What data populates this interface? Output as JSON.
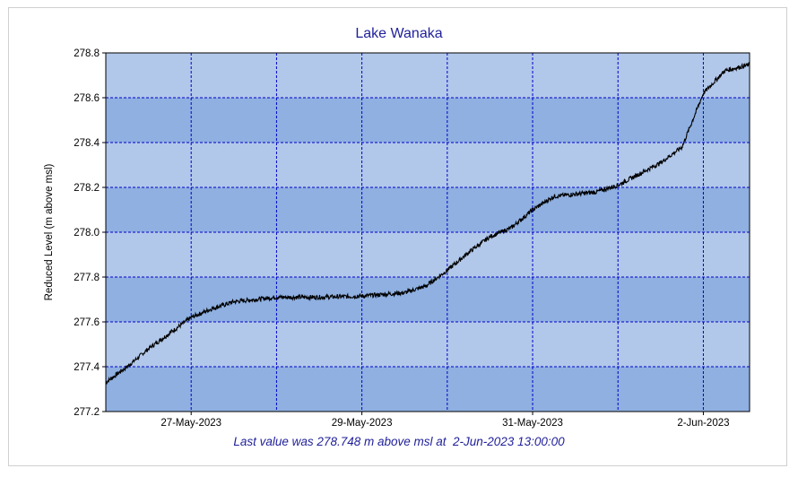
{
  "chart_data": {
    "type": "line",
    "title": "Lake Wanaka",
    "ylabel": "Reduced Level (m above msl)",
    "xlabel": "",
    "x_start": "2023-05-26T00:00",
    "x_end": "2023-06-02T13:00",
    "x_ticks": [
      {
        "label": "27-May-2023",
        "date": "2023-05-27T00:00"
      },
      {
        "label": "29-May-2023",
        "date": "2023-05-29T00:00"
      },
      {
        "label": "31-May-2023",
        "date": "2023-05-31T00:00"
      },
      {
        "label": "2-Jun-2023",
        "date": "2023-06-02T00:00"
      }
    ],
    "ylim": [
      277.2,
      278.8
    ],
    "y_ticks": [
      "277.2",
      "277.4",
      "277.6",
      "277.8",
      "278.0",
      "278.2",
      "278.4",
      "278.6",
      "278.8"
    ],
    "grid": true,
    "series": [
      {
        "color": "#000000",
        "points": [
          [
            "2023-05-26T00:00",
            277.33
          ],
          [
            "2023-05-26T06:00",
            277.4
          ],
          [
            "2023-05-26T12:00",
            277.48
          ],
          [
            "2023-05-26T18:00",
            277.55
          ],
          [
            "2023-05-27T00:00",
            277.62
          ],
          [
            "2023-05-27T06:00",
            277.66
          ],
          [
            "2023-05-27T12:00",
            277.69
          ],
          [
            "2023-05-27T18:00",
            277.7
          ],
          [
            "2023-05-28T00:00",
            277.71
          ],
          [
            "2023-05-28T12:00",
            277.71
          ],
          [
            "2023-05-29T00:00",
            277.715
          ],
          [
            "2023-05-29T12:00",
            277.73
          ],
          [
            "2023-05-29T18:00",
            277.76
          ],
          [
            "2023-05-30T00:00",
            277.83
          ],
          [
            "2023-05-30T06:00",
            277.91
          ],
          [
            "2023-05-30T12:00",
            277.98
          ],
          [
            "2023-05-30T18:00",
            278.02
          ],
          [
            "2023-05-31T00:00",
            278.1
          ],
          [
            "2023-05-31T06:00",
            278.16
          ],
          [
            "2023-05-31T12:00",
            278.17
          ],
          [
            "2023-05-31T18:00",
            278.18
          ],
          [
            "2023-06-01T00:00",
            278.21
          ],
          [
            "2023-06-01T06:00",
            278.26
          ],
          [
            "2023-06-01T12:00",
            278.31
          ],
          [
            "2023-06-01T18:00",
            278.38
          ],
          [
            "2023-06-02T00:00",
            278.62
          ],
          [
            "2023-06-02T06:00",
            278.72
          ],
          [
            "2023-06-02T13:00",
            278.748
          ]
        ]
      }
    ],
    "colors": {
      "band_light": "#b2c8ea",
      "band_dark": "#8fb0e1",
      "grid": "#0000cc",
      "axis": "#000000",
      "title": "#1f1f9a"
    }
  },
  "footer_text": "Last value was 278.748 m above msl at  2-Jun-2023 13:00:00"
}
